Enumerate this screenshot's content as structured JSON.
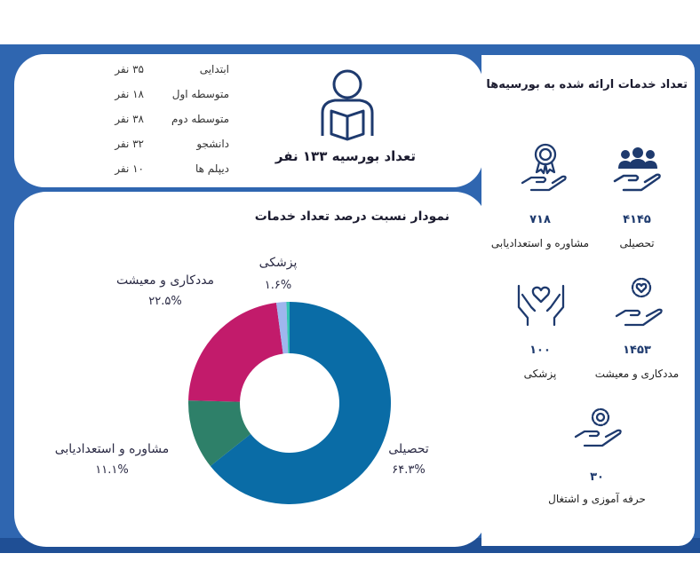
{
  "students": {
    "title": "تعداد بورسیه ۱۳۳ نفر",
    "rows": [
      {
        "level": "ابتدایی",
        "count": "۳۵ نفر"
      },
      {
        "level": "متوسطه اول",
        "count": "۱۸ نفر"
      },
      {
        "level": "متوسطه دوم",
        "count": "۳۸ نفر"
      },
      {
        "level": "دانشجو",
        "count": "۳۲ نفر"
      },
      {
        "level": "دیپلم ها",
        "count": "۱۰ نفر"
      }
    ]
  },
  "services": {
    "title": "تعداد خدمات ارائه شده به بورسیه‌ها",
    "items": [
      {
        "value": "۴۱۴۵",
        "label": "تحصیلی",
        "icon": "people-hand-icon"
      },
      {
        "value": "۷۱۸",
        "label": "مشاوره و استعدادیابی",
        "icon": "award-hand-icon"
      },
      {
        "value": "۱۴۵۳",
        "label": "مددکاری و معیشت",
        "icon": "heart-gear-hand-icon"
      },
      {
        "value": "۱۰۰",
        "label": "پزشکی",
        "icon": "heart-hands-icon"
      },
      {
        "value": "۳۰",
        "label": "حرفه آموزی و اشتغال",
        "icon": "gear-hand-icon"
      }
    ]
  },
  "chart_data": {
    "type": "pie",
    "title": "نمودار نسبت درصد تعداد خدمات",
    "slices": [
      {
        "name": "تحصیلی",
        "value": 64.3,
        "label": "۶۴.۳%",
        "color": "#0a6ca6"
      },
      {
        "name": "مشاوره و استعدادیابی",
        "value": 11.1,
        "label": "۱۱.۱%",
        "color": "#2e8069"
      },
      {
        "name": "مددکاری و معیشت",
        "value": 22.5,
        "label": "۲۲.۵%",
        "color": "#c21b6b"
      },
      {
        "name": "پزشکی",
        "value": 1.6,
        "label": "۱.۶%",
        "color": "#9fb6ee"
      },
      {
        "name": "",
        "value": 0.5,
        "label": "",
        "color": "#36c4b2"
      }
    ],
    "donut": true
  },
  "colors": {
    "frame": "#2f66b0",
    "icon": "#1e3a6e"
  }
}
